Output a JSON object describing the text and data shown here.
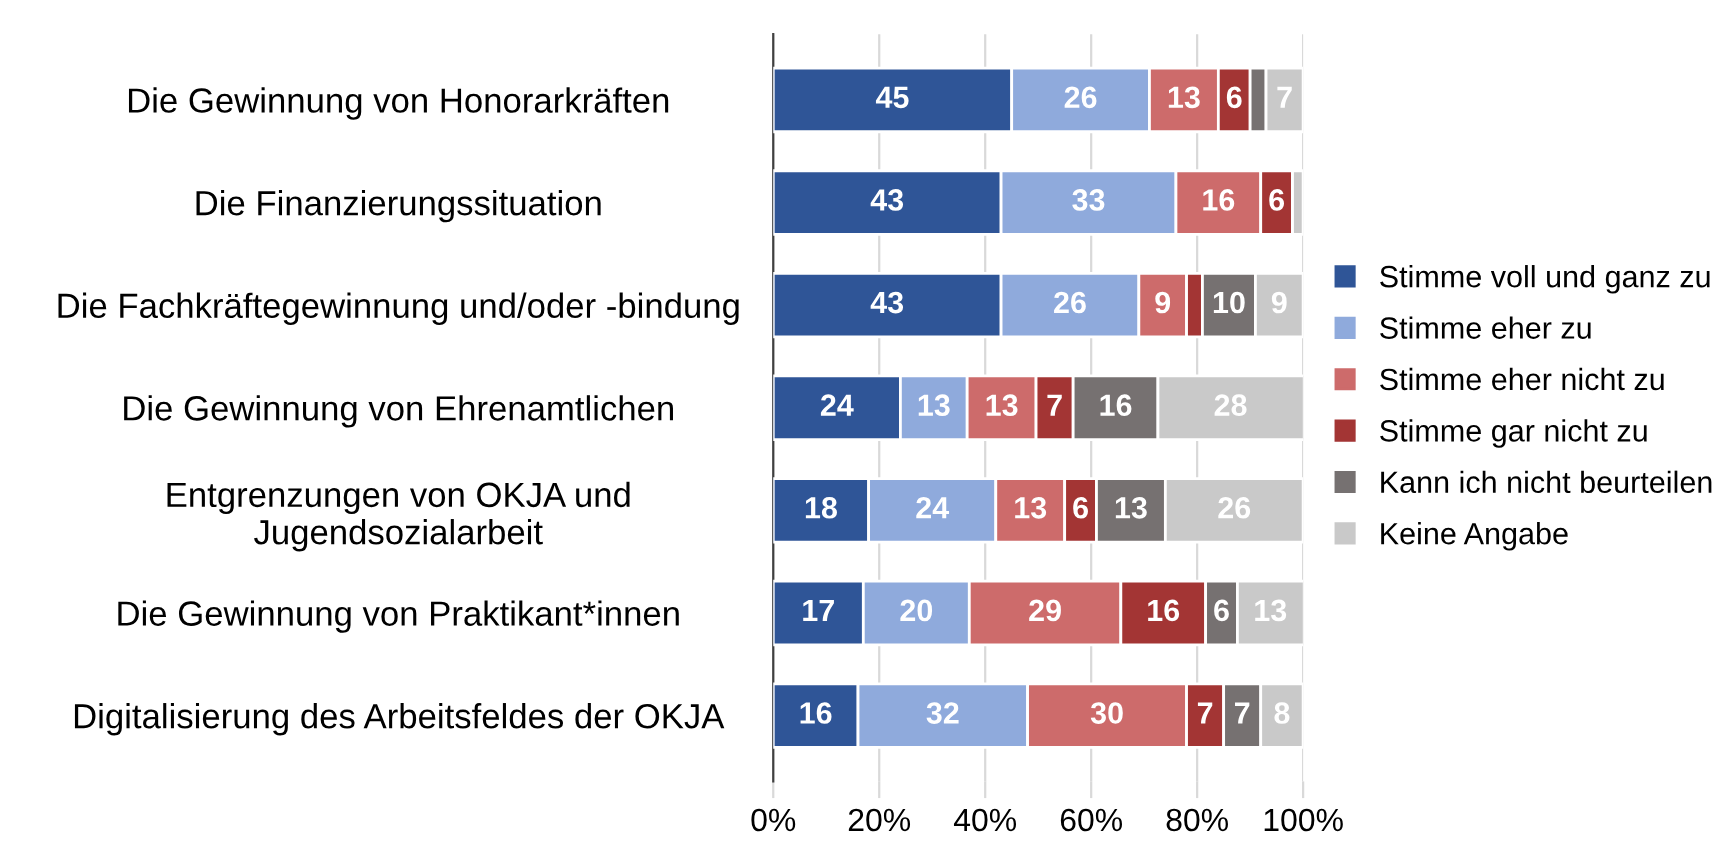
{
  "chart_data": {
    "type": "bar",
    "orientation": "horizontal",
    "stacked": true,
    "categories": [
      "Die Gewinnung von Honorarkräften",
      "Die Finanzierungssituation",
      "Die Fachkräftegewinnung und/oder -bindung",
      "Die Gewinnung von Ehrenamtlichen",
      "Entgrenzungen von OKJA und\nJugendsozialarbeit",
      "Die Gewinnung von Praktikant*innen",
      "Digitalisierung des Arbeitsfeldes der OKJA"
    ],
    "series": [
      {
        "name": "Stimme voll und ganz zu",
        "color": "#2f5597",
        "values": [
          45,
          43,
          43,
          24,
          18,
          17,
          16
        ],
        "value_labels": [
          "45",
          "43",
          "43",
          "24",
          "18",
          "17",
          "16"
        ]
      },
      {
        "name": "Stimme eher zu",
        "color": "#8faadc",
        "values": [
          26,
          33,
          26,
          12.6,
          24,
          20,
          32
        ],
        "value_labels": [
          "26",
          "33",
          "26",
          "13",
          "24",
          "20",
          "32"
        ]
      },
      {
        "name": "Stimme eher nicht zu",
        "color": "#cd6b6b",
        "values": [
          13,
          16,
          9,
          13,
          13,
          28.6,
          30
        ],
        "value_labels": [
          "13",
          "16",
          "9",
          "13",
          "13",
          "29",
          "30"
        ]
      },
      {
        "name": "Stimme gar nicht zu",
        "color": "#a33534",
        "values": [
          6,
          6,
          3,
          7,
          6,
          16,
          7
        ],
        "value_labels": [
          "6",
          "6",
          null,
          "7",
          "6",
          "16",
          "7"
        ]
      },
      {
        "name": "Kann ich nicht beurteilen",
        "color": "#767171",
        "values": [
          3,
          0,
          10,
          16,
          13,
          6,
          7
        ],
        "value_labels": [
          null,
          null,
          "10",
          "16",
          "13",
          "6",
          "7"
        ]
      },
      {
        "name": "Keine Angabe",
        "color": "#c9c9c9",
        "values": [
          7,
          2,
          9,
          27.6,
          26,
          12.6,
          8
        ],
        "value_labels": [
          "7",
          null,
          "9",
          "28",
          "26",
          "13",
          "8"
        ]
      }
    ],
    "xlim": [
      0,
      100
    ],
    "xticks": [
      {
        "value": 0,
        "label": "0%"
      },
      {
        "value": 20,
        "label": "20%"
      },
      {
        "value": 40,
        "label": "40%"
      },
      {
        "value": 60,
        "label": "60%"
      },
      {
        "value": 80,
        "label": "80%"
      },
      {
        "value": 100,
        "label": "100%"
      }
    ],
    "grid": "x",
    "legend": "right"
  }
}
